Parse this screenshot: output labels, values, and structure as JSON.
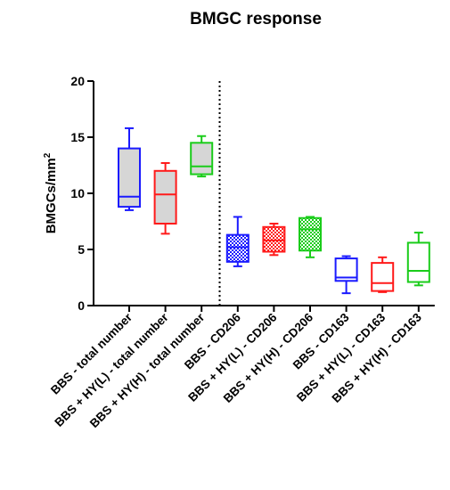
{
  "chart_data": {
    "type": "box",
    "title": "BMGC response",
    "ylabel_main": "BMGCs/mm",
    "ylabel_sup": "2",
    "xlabel": "",
    "ylim": [
      0,
      20
    ],
    "yticks": [
      0,
      5,
      10,
      15,
      20
    ],
    "ytick_labels": [
      "0",
      "5",
      "10",
      "15",
      "20"
    ],
    "grid": false,
    "legend": "none",
    "separator": "dotted vertical line between group 3 and group 4",
    "categories": [
      "BBS - total number",
      "BBS + HY(L) - total number",
      "BBS + HY(H) - total number",
      "BBS - CD206",
      "BBS + HY(L) - CD206",
      "BBS + HY(H) - CD206",
      "BBS - CD163",
      "BBS + HY(L) - CD163",
      "BBS + HY(H) - CD163"
    ],
    "boxes": [
      {
        "min": 8.5,
        "q1": 8.8,
        "median": 9.7,
        "q3": 14.0,
        "max": 15.8,
        "color": "#1a1aff",
        "fill": "solid"
      },
      {
        "min": 6.4,
        "q1": 7.3,
        "median": 9.9,
        "q3": 12.0,
        "max": 12.7,
        "color": "#ff1a1a",
        "fill": "solid"
      },
      {
        "min": 11.5,
        "q1": 11.7,
        "median": 12.4,
        "q3": 14.5,
        "max": 15.1,
        "color": "#1acc1a",
        "fill": "solid"
      },
      {
        "min": 3.5,
        "q1": 3.9,
        "median": 5.2,
        "q3": 6.3,
        "max": 7.9,
        "color": "#1a1aff",
        "fill": "pattern"
      },
      {
        "min": 4.5,
        "q1": 4.8,
        "median": 5.8,
        "q3": 7.0,
        "max": 7.3,
        "color": "#ff1a1a",
        "fill": "pattern"
      },
      {
        "min": 4.3,
        "q1": 4.9,
        "median": 6.8,
        "q3": 7.8,
        "max": 7.9,
        "color": "#1acc1a",
        "fill": "pattern"
      },
      {
        "min": 1.1,
        "q1": 2.2,
        "median": 2.5,
        "q3": 4.2,
        "max": 4.4,
        "color": "#1a1aff",
        "fill": "none"
      },
      {
        "min": 1.2,
        "q1": 1.3,
        "median": 2.0,
        "q3": 3.8,
        "max": 4.3,
        "color": "#ff1a1a",
        "fill": "none"
      },
      {
        "min": 1.8,
        "q1": 2.1,
        "median": 3.1,
        "q3": 5.6,
        "max": 6.5,
        "color": "#1acc1a",
        "fill": "none"
      }
    ],
    "box_fill_color": "#d6d6d6"
  }
}
